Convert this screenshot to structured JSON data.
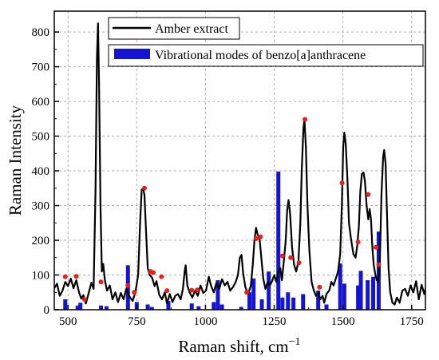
{
  "chart_data": {
    "type": "line",
    "title": "",
    "xlabel": "Raman shift, cm",
    "xlabel_superscript": "−1",
    "ylabel": "Raman Intensity",
    "xlim": [
      450,
      1800
    ],
    "ylim": [
      0,
      860
    ],
    "x_ticks": [
      500,
      750,
      1000,
      1250,
      1500,
      1750
    ],
    "y_ticks": [
      0,
      100,
      200,
      300,
      400,
      500,
      600,
      700,
      800
    ],
    "grid": true,
    "legend_position": "top-right",
    "colors": {
      "line": "#000000",
      "bars": "#1414d2",
      "markers": "#e8201a"
    },
    "series": [
      {
        "name": "Amber extract",
        "kind": "line",
        "points": [
          [
            450,
            62
          ],
          [
            460,
            75
          ],
          [
            470,
            40
          ],
          [
            480,
            55
          ],
          [
            490,
            80
          ],
          [
            500,
            68
          ],
          [
            510,
            90
          ],
          [
            520,
            62
          ],
          [
            530,
            85
          ],
          [
            540,
            50
          ],
          [
            548,
            32
          ],
          [
            556,
            42
          ],
          [
            565,
            18
          ],
          [
            575,
            48
          ],
          [
            585,
            78
          ],
          [
            593,
            60
          ],
          [
            600,
            350
          ],
          [
            605,
            720
          ],
          [
            609,
            825
          ],
          [
            613,
            650
          ],
          [
            618,
            300
          ],
          [
            623,
            110
          ],
          [
            628,
            132
          ],
          [
            634,
            85
          ],
          [
            642,
            55
          ],
          [
            652,
            70
          ],
          [
            662,
            30
          ],
          [
            672,
            50
          ],
          [
            682,
            22
          ],
          [
            692,
            48
          ],
          [
            702,
            30
          ],
          [
            712,
            60
          ],
          [
            722,
            40
          ],
          [
            735,
            25
          ],
          [
            745,
            50
          ],
          [
            755,
            100
          ],
          [
            762,
            250
          ],
          [
            768,
            345
          ],
          [
            773,
            350
          ],
          [
            778,
            330
          ],
          [
            784,
            225
          ],
          [
            790,
            120
          ],
          [
            797,
            100
          ],
          [
            806,
            92
          ],
          [
            815,
            68
          ],
          [
            822,
            82
          ],
          [
            832,
            42
          ],
          [
            842,
            30
          ],
          [
            852,
            50
          ],
          [
            860,
            18
          ],
          [
            870,
            45
          ],
          [
            880,
            22
          ],
          [
            890,
            40
          ],
          [
            900,
            45
          ],
          [
            910,
            30
          ],
          [
            918,
            60
          ],
          [
            924,
            110
          ],
          [
            928,
            128
          ],
          [
            934,
            70
          ],
          [
            942,
            50
          ],
          [
            952,
            35
          ],
          [
            962,
            55
          ],
          [
            972,
            40
          ],
          [
            982,
            70
          ],
          [
            992,
            48
          ],
          [
            1002,
            55
          ],
          [
            1012,
            95
          ],
          [
            1020,
            70
          ],
          [
            1030,
            50
          ],
          [
            1040,
            78
          ],
          [
            1050,
            60
          ],
          [
            1060,
            88
          ],
          [
            1070,
            70
          ],
          [
            1080,
            80
          ],
          [
            1090,
            55
          ],
          [
            1100,
            65
          ],
          [
            1110,
            80
          ],
          [
            1118,
            100
          ],
          [
            1125,
            150
          ],
          [
            1131,
            158
          ],
          [
            1137,
            105
          ],
          [
            1145,
            65
          ],
          [
            1155,
            45
          ],
          [
            1165,
            70
          ],
          [
            1172,
            130
          ],
          [
            1178,
            200
          ],
          [
            1184,
            236
          ],
          [
            1190,
            215
          ],
          [
            1196,
            210
          ],
          [
            1203,
            150
          ],
          [
            1210,
            90
          ],
          [
            1218,
            60
          ],
          [
            1226,
            80
          ],
          [
            1234,
            70
          ],
          [
            1242,
            82
          ],
          [
            1250,
            100
          ],
          [
            1258,
            80
          ],
          [
            1265,
            110
          ],
          [
            1272,
            120
          ],
          [
            1278,
            85
          ],
          [
            1285,
            140
          ],
          [
            1292,
            200
          ],
          [
            1297,
            285
          ],
          [
            1302,
            316
          ],
          [
            1308,
            275
          ],
          [
            1315,
            180
          ],
          [
            1322,
            130
          ],
          [
            1330,
            110
          ],
          [
            1338,
            140
          ],
          [
            1345,
            250
          ],
          [
            1350,
            400
          ],
          [
            1356,
            520
          ],
          [
            1360,
            548
          ],
          [
            1365,
            470
          ],
          [
            1371,
            300
          ],
          [
            1378,
            170
          ],
          [
            1386,
            80
          ],
          [
            1394,
            55
          ],
          [
            1402,
            40
          ],
          [
            1410,
            50
          ],
          [
            1418,
            30
          ],
          [
            1426,
            40
          ],
          [
            1432,
            20
          ],
          [
            1440,
            45
          ],
          [
            1450,
            55
          ],
          [
            1458,
            80
          ],
          [
            1466,
            70
          ],
          [
            1474,
            90
          ],
          [
            1482,
            110
          ],
          [
            1490,
            160
          ],
          [
            1496,
            300
          ],
          [
            1501,
            470
          ],
          [
            1505,
            510
          ],
          [
            1510,
            480
          ],
          [
            1516,
            380
          ],
          [
            1522,
            250
          ],
          [
            1530,
            200
          ],
          [
            1538,
            160
          ],
          [
            1546,
            150
          ],
          [
            1552,
            185
          ],
          [
            1558,
            240
          ],
          [
            1563,
            340
          ],
          [
            1569,
            392
          ],
          [
            1575,
            395
          ],
          [
            1580,
            370
          ],
          [
            1586,
            300
          ],
          [
            1592,
            260
          ],
          [
            1597,
            290
          ],
          [
            1602,
            260
          ],
          [
            1607,
            180
          ],
          [
            1612,
            130
          ],
          [
            1618,
            100
          ],
          [
            1623,
            85
          ],
          [
            1628,
            80
          ],
          [
            1634,
            130
          ],
          [
            1640,
            330
          ],
          [
            1646,
            440
          ],
          [
            1650,
            460
          ],
          [
            1655,
            420
          ],
          [
            1660,
            280
          ],
          [
            1666,
            120
          ],
          [
            1672,
            50
          ],
          [
            1680,
            20
          ],
          [
            1688,
            15
          ],
          [
            1696,
            35
          ],
          [
            1706,
            20
          ],
          [
            1716,
            55
          ],
          [
            1726,
            60
          ],
          [
            1736,
            40
          ],
          [
            1746,
            70
          ],
          [
            1756,
            50
          ],
          [
            1766,
            82
          ],
          [
            1776,
            30
          ],
          [
            1786,
            72
          ],
          [
            1796,
            45
          ],
          [
            1800,
            60
          ]
        ]
      },
      {
        "name": "Vibrational modes of benzo[a]anthracene",
        "kind": "bar",
        "points": [
          [
            490,
            30
          ],
          [
            535,
            12
          ],
          [
            545,
            20
          ],
          [
            620,
            12
          ],
          [
            640,
            10
          ],
          [
            718,
            128
          ],
          [
            750,
            22
          ],
          [
            790,
            15
          ],
          [
            805,
            8
          ],
          [
            865,
            25
          ],
          [
            950,
            18
          ],
          [
            975,
            10
          ],
          [
            1030,
            22
          ],
          [
            1045,
            85
          ],
          [
            1060,
            15
          ],
          [
            1130,
            8
          ],
          [
            1160,
            50
          ],
          [
            1175,
            90
          ],
          [
            1205,
            30
          ],
          [
            1230,
            110
          ],
          [
            1265,
            398
          ],
          [
            1280,
            35
          ],
          [
            1300,
            50
          ],
          [
            1320,
            35
          ],
          [
            1355,
            45
          ],
          [
            1410,
            55
          ],
          [
            1440,
            15
          ],
          [
            1490,
            133
          ],
          [
            1505,
            75
          ],
          [
            1555,
            70
          ],
          [
            1565,
            112
          ],
          [
            1590,
            85
          ],
          [
            1610,
            95
          ],
          [
            1630,
            225
          ]
        ]
      },
      {
        "name": "",
        "kind": "marker",
        "points": [
          [
            490,
            95
          ],
          [
            530,
            96
          ],
          [
            560,
            30
          ],
          [
            620,
            80
          ],
          [
            718,
            70
          ],
          [
            741,
            50
          ],
          [
            778,
            350
          ],
          [
            800,
            110
          ],
          [
            810,
            107
          ],
          [
            840,
            95
          ],
          [
            860,
            55
          ],
          [
            950,
            56
          ],
          [
            970,
            57
          ],
          [
            1150,
            50
          ],
          [
            1185,
            205
          ],
          [
            1200,
            210
          ],
          [
            1280,
            155
          ],
          [
            1310,
            150
          ],
          [
            1340,
            135
          ],
          [
            1362,
            548
          ],
          [
            1415,
            65
          ],
          [
            1497,
            365
          ],
          [
            1555,
            195
          ],
          [
            1592,
            332
          ],
          [
            1620,
            180
          ],
          [
            1630,
            130
          ]
        ]
      }
    ]
  }
}
